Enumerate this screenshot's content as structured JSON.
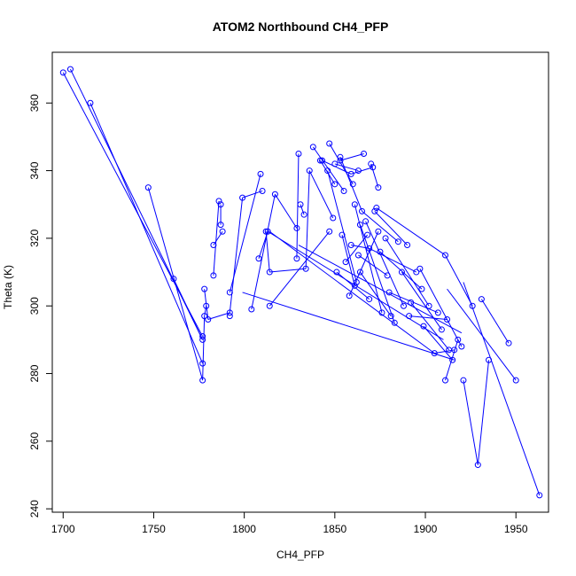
{
  "chart_data": {
    "type": "line",
    "title": "ATOM2 Northbound CH4_PFP",
    "xlabel": "CH4_PFP",
    "ylabel": "Theta (K)",
    "xlim": [
      1694,
      1968
    ],
    "ylim": [
      239,
      375
    ],
    "x_ticks": [
      1700,
      1750,
      1800,
      1850,
      1900,
      1950
    ],
    "y_ticks": [
      240,
      260,
      280,
      300,
      320,
      340,
      360
    ],
    "grid": false,
    "legend": "none",
    "series_color": "#0000ff",
    "marker": "open-circle",
    "points": [
      [
        1700,
        369
      ],
      [
        1704,
        370
      ],
      [
        1715,
        360
      ],
      [
        1747,
        335
      ],
      [
        1761,
        308
      ],
      [
        1777,
        291
      ],
      [
        1777,
        290
      ],
      [
        1777,
        283
      ],
      [
        1777,
        278
      ],
      [
        1778,
        297
      ],
      [
        1778,
        305
      ],
      [
        1779,
        300
      ],
      [
        1780,
        296
      ],
      [
        1783,
        309
      ],
      [
        1783,
        318
      ],
      [
        1786,
        331
      ],
      [
        1787,
        330
      ],
      [
        1787,
        324
      ],
      [
        1788,
        322
      ],
      [
        1792,
        298
      ],
      [
        1792,
        297
      ],
      [
        1792,
        304
      ],
      [
        1799,
        332
      ],
      [
        1804,
        299
      ],
      [
        1808,
        314
      ],
      [
        1809,
        339
      ],
      [
        1810,
        334
      ],
      [
        1812,
        322
      ],
      [
        1813,
        322
      ],
      [
        1814,
        300
      ],
      [
        1814,
        310
      ],
      [
        1817,
        333
      ],
      [
        1829,
        323
      ],
      [
        1829,
        314
      ],
      [
        1830,
        345
      ],
      [
        1831,
        330
      ],
      [
        1833,
        327
      ],
      [
        1834,
        311
      ],
      [
        1836,
        340
      ],
      [
        1838,
        347
      ],
      [
        1842,
        343
      ],
      [
        1843,
        343
      ],
      [
        1846,
        340
      ],
      [
        1847,
        322
      ],
      [
        1847,
        348
      ],
      [
        1849,
        326
      ],
      [
        1850,
        342
      ],
      [
        1850,
        336
      ],
      [
        1851,
        310
      ],
      [
        1853,
        344
      ],
      [
        1853,
        343
      ],
      [
        1854,
        321
      ],
      [
        1855,
        334
      ],
      [
        1856,
        313
      ],
      [
        1858,
        303
      ],
      [
        1859,
        339
      ],
      [
        1859,
        318
      ],
      [
        1860,
        336
      ],
      [
        1861,
        330
      ],
      [
        1861,
        306
      ],
      [
        1862,
        307
      ],
      [
        1863,
        340
      ],
      [
        1863,
        315
      ],
      [
        1864,
        324
      ],
      [
        1864,
        310
      ],
      [
        1865,
        328
      ],
      [
        1866,
        345
      ],
      [
        1867,
        325
      ],
      [
        1868,
        321
      ],
      [
        1869,
        317
      ],
      [
        1869,
        302
      ],
      [
        1870,
        342
      ],
      [
        1871,
        341
      ],
      [
        1872,
        328
      ],
      [
        1873,
        329
      ],
      [
        1874,
        335
      ],
      [
        1874,
        322
      ],
      [
        1875,
        316
      ],
      [
        1876,
        298
      ],
      [
        1878,
        320
      ],
      [
        1879,
        309
      ],
      [
        1880,
        304
      ],
      [
        1881,
        297
      ],
      [
        1883,
        295
      ],
      [
        1885,
        319
      ],
      [
        1887,
        310
      ],
      [
        1888,
        300
      ],
      [
        1890,
        318
      ],
      [
        1891,
        297
      ],
      [
        1892,
        301
      ],
      [
        1895,
        310
      ],
      [
        1897,
        311
      ],
      [
        1898,
        305
      ],
      [
        1899,
        294
      ],
      [
        1902,
        300
      ],
      [
        1905,
        286
      ],
      [
        1907,
        298
      ],
      [
        1909,
        293
      ],
      [
        1911,
        315
      ],
      [
        1911,
        278
      ],
      [
        1912,
        296
      ],
      [
        1913,
        287
      ],
      [
        1915,
        284
      ],
      [
        1916,
        287
      ],
      [
        1918,
        290
      ],
      [
        1920,
        288
      ],
      [
        1921,
        278
      ],
      [
        1926,
        300
      ],
      [
        1929,
        253
      ],
      [
        1931,
        302
      ],
      [
        1935,
        284
      ],
      [
        1946,
        289
      ],
      [
        1950,
        278
      ],
      [
        1963,
        244
      ]
    ],
    "segments": [
      [
        [
          1700,
          369
        ],
        [
          1777,
          291
        ]
      ],
      [
        [
          1704,
          370
        ],
        [
          1777,
          290
        ]
      ],
      [
        [
          1715,
          360
        ],
        [
          1777,
          283
        ]
      ],
      [
        [
          1747,
          335
        ],
        [
          1777,
          278
        ]
      ],
      [
        [
          1761,
          308
        ],
        [
          1777,
          290
        ]
      ],
      [
        [
          1777,
          278
        ],
        [
          1778,
          297
        ]
      ],
      [
        [
          1778,
          297
        ],
        [
          1779,
          300
        ]
      ],
      [
        [
          1778,
          305
        ],
        [
          1780,
          296
        ]
      ],
      [
        [
          1783,
          309
        ],
        [
          1786,
          331
        ]
      ],
      [
        [
          1783,
          318
        ],
        [
          1788,
          322
        ]
      ],
      [
        [
          1787,
          330
        ],
        [
          1787,
          324
        ]
      ],
      [
        [
          1780,
          296
        ],
        [
          1792,
          298
        ]
      ],
      [
        [
          1792,
          298
        ],
        [
          1799,
          332
        ]
      ],
      [
        [
          1792,
          304
        ],
        [
          1809,
          339
        ]
      ],
      [
        [
          1799,
          332
        ],
        [
          1810,
          334
        ]
      ],
      [
        [
          1804,
          299
        ],
        [
          1817,
          333
        ]
      ],
      [
        [
          1808,
          314
        ],
        [
          1813,
          322
        ]
      ],
      [
        [
          1812,
          322
        ],
        [
          1814,
          310
        ]
      ],
      [
        [
          1814,
          300
        ],
        [
          1847,
          322
        ]
      ],
      [
        [
          1814,
          310
        ],
        [
          1834,
          311
        ]
      ],
      [
        [
          1817,
          333
        ],
        [
          1829,
          323
        ]
      ],
      [
        [
          1829,
          314
        ],
        [
          1830,
          345
        ]
      ],
      [
        [
          1831,
          330
        ],
        [
          1833,
          327
        ]
      ],
      [
        [
          1834,
          311
        ],
        [
          1836,
          340
        ]
      ],
      [
        [
          1836,
          340
        ],
        [
          1849,
          326
        ]
      ],
      [
        [
          1838,
          347
        ],
        [
          1855,
          334
        ]
      ],
      [
        [
          1842,
          343
        ],
        [
          1850,
          336
        ]
      ],
      [
        [
          1843,
          343
        ],
        [
          1859,
          339
        ]
      ],
      [
        [
          1846,
          340
        ],
        [
          1862,
          307
        ]
      ],
      [
        [
          1847,
          348
        ],
        [
          1860,
          336
        ]
      ],
      [
        [
          1850,
          342
        ],
        [
          1863,
          340
        ]
      ],
      [
        [
          1851,
          310
        ],
        [
          1869,
          302
        ]
      ],
      [
        [
          1853,
          344
        ],
        [
          1865,
          328
        ]
      ],
      [
        [
          1853,
          343
        ],
        [
          1866,
          345
        ]
      ],
      [
        [
          1854,
          321
        ],
        [
          1861,
          306
        ]
      ],
      [
        [
          1856,
          313
        ],
        [
          1868,
          321
        ]
      ],
      [
        [
          1858,
          303
        ],
        [
          1874,
          322
        ]
      ],
      [
        [
          1859,
          339
        ],
        [
          1871,
          341
        ]
      ],
      [
        [
          1859,
          318
        ],
        [
          1869,
          317
        ]
      ],
      [
        [
          1861,
          330
        ],
        [
          1876,
          298
        ]
      ],
      [
        [
          1863,
          315
        ],
        [
          1879,
          309
        ]
      ],
      [
        [
          1864,
          324
        ],
        [
          1883,
          295
        ]
      ],
      [
        [
          1864,
          310
        ],
        [
          1881,
          297
        ]
      ],
      [
        [
          1865,
          328
        ],
        [
          1885,
          319
        ]
      ],
      [
        [
          1867,
          325
        ],
        [
          1888,
          300
        ]
      ],
      [
        [
          1869,
          317
        ],
        [
          1895,
          310
        ]
      ],
      [
        [
          1870,
          342
        ],
        [
          1874,
          335
        ]
      ],
      [
        [
          1872,
          328
        ],
        [
          1890,
          318
        ]
      ],
      [
        [
          1873,
          329
        ],
        [
          1911,
          315
        ]
      ],
      [
        [
          1875,
          316
        ],
        [
          1898,
          305
        ]
      ],
      [
        [
          1878,
          320
        ],
        [
          1902,
          300
        ]
      ],
      [
        [
          1880,
          304
        ],
        [
          1907,
          298
        ]
      ],
      [
        [
          1887,
          310
        ],
        [
          1909,
          293
        ]
      ],
      [
        [
          1891,
          297
        ],
        [
          1912,
          296
        ]
      ],
      [
        [
          1892,
          301
        ],
        [
          1913,
          287
        ]
      ],
      [
        [
          1897,
          311
        ],
        [
          1920,
          288
        ]
      ],
      [
        [
          1899,
          294
        ],
        [
          1915,
          284
        ]
      ],
      [
        [
          1905,
          286
        ],
        [
          1916,
          287
        ]
      ],
      [
        [
          1911,
          278
        ],
        [
          1918,
          290
        ]
      ],
      [
        [
          1911,
          315
        ],
        [
          1926,
          300
        ]
      ],
      [
        [
          1921,
          278
        ],
        [
          1929,
          253
        ]
      ],
      [
        [
          1929,
          253
        ],
        [
          1935,
          284
        ]
      ],
      [
        [
          1931,
          302
        ],
        [
          1946,
          289
        ]
      ],
      [
        [
          1912,
          305
        ],
        [
          1950,
          278
        ]
      ],
      [
        [
          1921,
          307
        ],
        [
          1963,
          244
        ]
      ],
      [
        [
          1814,
          322
        ],
        [
          1905,
          286
        ]
      ],
      [
        [
          1813,
          322
        ],
        [
          1910,
          290
        ]
      ],
      [
        [
          1799,
          304
        ],
        [
          1916,
          284
        ]
      ],
      [
        [
          1830,
          318
        ],
        [
          1920,
          292
        ]
      ]
    ]
  }
}
